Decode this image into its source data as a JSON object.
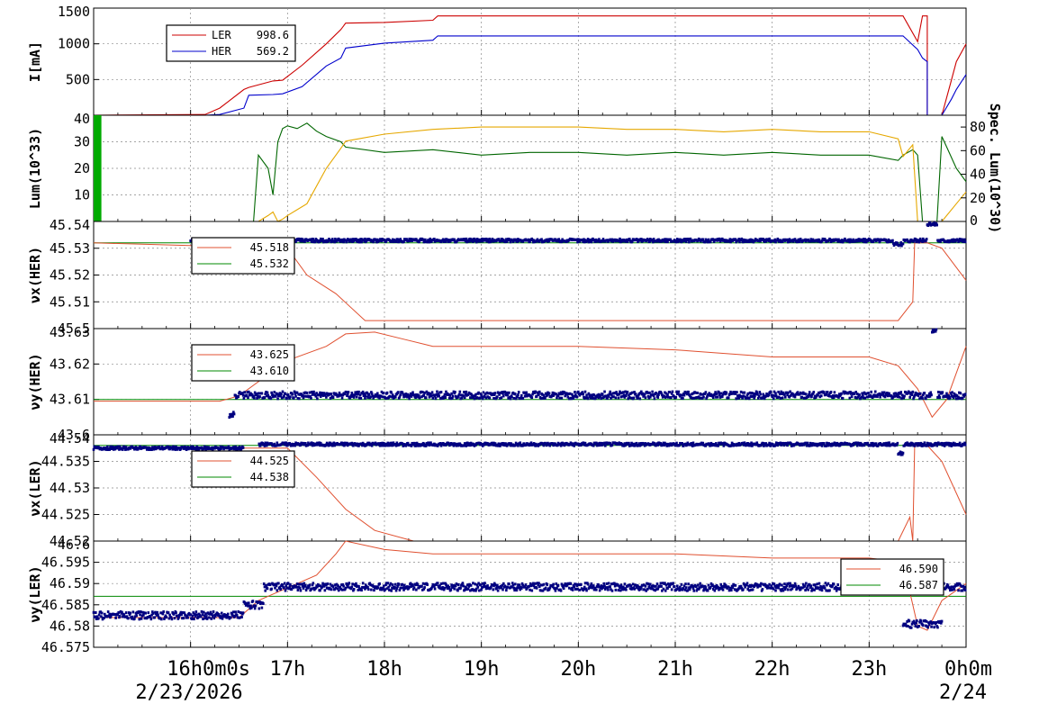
{
  "colors": {
    "ler": "#cc0000",
    "her": "#0000cc",
    "lum_green": "#006600",
    "spec_lum": "#e6a800",
    "measured": "#000080",
    "setpoint_red": "#e05030",
    "setpoint_green": "#008800",
    "lum_bar": "#00aa00"
  },
  "time_axis": {
    "tick_labels": [
      "16h0m0s",
      "17h",
      "18h",
      "19h",
      "20h",
      "21h",
      "22h",
      "23h",
      "0h0m"
    ],
    "date_left": "2/23/2026",
    "date_right": "2/24"
  },
  "chart_data": [
    {
      "id": "current",
      "type": "line",
      "ylabel": "I[mA]",
      "ylim": [
        0,
        1500
      ],
      "yticks": [
        "500",
        "1000",
        "1500"
      ],
      "grid": true,
      "legend": {
        "placement": "top-left",
        "entries": [
          {
            "name": "LER",
            "value": "998.6",
            "color_key": "ler"
          },
          {
            "name": "HER",
            "value": "569.2",
            "color_key": "her"
          }
        ]
      },
      "x_hours": [
        15.0,
        16.15,
        16.3,
        16.55,
        16.6,
        16.85,
        16.95,
        17.15,
        17.4,
        17.55,
        17.6,
        18.0,
        18.5,
        18.55,
        19.5,
        20.5,
        21.5,
        22.0,
        22.5,
        23.0,
        23.35,
        23.5,
        23.55,
        23.6,
        23.6,
        23.75,
        23.85,
        23.9,
        24.0
      ],
      "series": [
        {
          "color_key": "ler",
          "y": [
            0,
            10,
            100,
            360,
            390,
            480,
            490,
            700,
            1000,
            1200,
            1290,
            1300,
            1330,
            1390,
            1390,
            1390,
            1390,
            1390,
            1390,
            1390,
            1390,
            1030,
            1390,
            1390,
            0,
            0,
            500,
            750,
            998.6
          ]
        },
        {
          "color_key": "her",
          "y": [
            0,
            0,
            10,
            100,
            280,
            290,
            300,
            400,
            690,
            800,
            940,
            1010,
            1050,
            1110,
            1110,
            1110,
            1110,
            1110,
            1110,
            1110,
            1110,
            920,
            800,
            750,
            0,
            0,
            230,
            360,
            569.2
          ]
        }
      ]
    },
    {
      "id": "luminosity",
      "type": "line",
      "ylabel": "Lum(10^33)",
      "ylabel_right": "Spec. Lum(10^30)",
      "ylim": [
        0,
        40
      ],
      "yticks": [
        "10",
        "20",
        "30",
        "40"
      ],
      "ylim_right": [
        0,
        90
      ],
      "yticks_right": [
        "0",
        "20",
        "40",
        "60",
        "80"
      ],
      "grid": true,
      "x_hours": [
        16.65,
        16.7,
        16.8,
        16.85,
        16.9,
        16.95,
        17.0,
        17.1,
        17.2,
        17.3,
        17.4,
        17.55,
        17.6,
        18.0,
        18.5,
        19.0,
        19.5,
        20.0,
        20.5,
        21.0,
        21.5,
        22.0,
        22.5,
        23.0,
        23.3,
        23.35,
        23.45,
        23.5,
        23.55,
        23.6,
        23.7,
        23.75,
        23.8,
        23.9,
        24.0
      ],
      "series": [
        {
          "name": "Lum",
          "axis": "left",
          "color_key": "lum_green",
          "y": [
            0,
            25,
            20,
            10,
            30,
            35,
            36,
            35,
            37,
            34,
            32,
            30,
            28,
            26,
            27,
            25,
            26,
            26,
            25,
            26,
            25,
            26,
            25,
            25,
            23,
            25,
            27,
            25,
            0,
            0,
            0,
            32,
            28,
            20,
            15
          ]
        },
        {
          "name": "Spec. Lum",
          "axis": "right",
          "color_key": "spec_lum",
          "y": [
            0,
            0,
            5,
            8,
            0,
            2,
            5,
            10,
            15,
            30,
            45,
            62,
            68,
            74,
            78,
            80,
            80,
            80,
            78,
            78,
            76,
            78,
            76,
            76,
            70,
            55,
            65,
            0,
            0,
            0,
            0,
            0,
            5,
            15,
            25
          ]
        }
      ],
      "decorative_bar_hours": [
        15.0,
        15.08
      ]
    },
    {
      "id": "nux-her",
      "type": "scatter",
      "ylabel": "νx(HER)",
      "ylim": [
        45.5,
        45.54
      ],
      "yticks": [
        "45.5",
        "45.51",
        "45.52",
        "45.53",
        "45.54"
      ],
      "grid": true,
      "legend": {
        "placement": "top-left",
        "entries": [
          {
            "name": "",
            "value": "45.518",
            "color_key": "setpoint_red"
          },
          {
            "name": "",
            "value": "45.532",
            "color_key": "setpoint_green"
          }
        ]
      },
      "setpoint_red": {
        "x_hours": [
          15.0,
          17.0,
          17.2,
          17.5,
          17.8,
          18.3,
          19.0,
          21.0,
          22.0,
          23.0,
          23.3,
          23.45,
          23.47,
          23.6,
          23.75,
          24.0
        ],
        "y": [
          45.532,
          45.53,
          45.52,
          45.513,
          45.503,
          45.503,
          45.503,
          45.503,
          45.503,
          45.503,
          45.503,
          45.51,
          45.532,
          45.532,
          45.53,
          45.518
        ]
      },
      "setpoint_green": {
        "x_hours": [
          15.0,
          24.0
        ],
        "y": [
          45.532,
          45.532
        ]
      },
      "measured": {
        "start_hour": 16.0,
        "end_hour": 24.0,
        "base": 45.5329,
        "noise": 0.0006,
        "drops": [
          [
            23.25,
            23.35,
            45.5315
          ],
          [
            23.6,
            23.7,
            45.539
          ]
        ]
      }
    },
    {
      "id": "nuy-her",
      "type": "scatter",
      "ylabel": "νy(HER)",
      "ylim": [
        43.6,
        43.63
      ],
      "yticks": [
        "43.6",
        "43.61",
        "43.62",
        "43.63"
      ],
      "grid": true,
      "legend": {
        "placement": "top-left",
        "entries": [
          {
            "name": "",
            "value": "43.625",
            "color_key": "setpoint_red"
          },
          {
            "name": "",
            "value": "43.610",
            "color_key": "setpoint_green"
          }
        ]
      },
      "setpoint_red": {
        "x_hours": [
          15.0,
          16.3,
          16.5,
          17.0,
          17.4,
          17.6,
          17.9,
          18.2,
          18.5,
          19.0,
          20.0,
          21.0,
          22.0,
          23.0,
          23.3,
          23.5,
          23.65,
          23.8,
          24.0
        ],
        "y": [
          43.6095,
          43.6095,
          43.611,
          43.621,
          43.625,
          43.6285,
          43.629,
          43.627,
          43.625,
          43.625,
          43.625,
          43.624,
          43.622,
          43.622,
          43.6195,
          43.613,
          43.605,
          43.61,
          43.625
        ]
      },
      "setpoint_green": {
        "x_hours": [
          15.0,
          24.0
        ],
        "y": [
          43.61,
          43.61
        ]
      },
      "measured": {
        "start_hour": 16.4,
        "end_hour": 24.0,
        "base": 43.6112,
        "noise": 0.001,
        "drops": [
          [
            16.4,
            16.45,
            43.6055
          ],
          [
            23.65,
            23.7,
            43.6295
          ]
        ]
      }
    },
    {
      "id": "nux-ler",
      "type": "scatter",
      "ylabel": "νx(LER)",
      "ylim": [
        44.52,
        44.54
      ],
      "yticks": [
        "44.52",
        "44.525",
        "44.53",
        "44.535",
        "44.54"
      ],
      "grid": true,
      "legend": {
        "placement": "top-left",
        "entries": [
          {
            "name": "",
            "value": "44.525",
            "color_key": "setpoint_red"
          },
          {
            "name": "",
            "value": "44.538",
            "color_key": "setpoint_green"
          }
        ]
      },
      "setpoint_red": {
        "x_hours": [
          15.0,
          17.0,
          17.3,
          17.6,
          17.9,
          18.3,
          19.0,
          21.0,
          22.0,
          23.0,
          23.3,
          23.42,
          23.45,
          23.47,
          23.6,
          23.75,
          24.0
        ],
        "y": [
          44.5375,
          44.5375,
          44.532,
          44.526,
          44.522,
          44.5195,
          44.519,
          44.519,
          44.519,
          44.519,
          44.5195,
          44.5245,
          44.519,
          44.538,
          44.538,
          44.535,
          44.525
        ]
      },
      "setpoint_green": {
        "x_hours": [
          15.0,
          24.0
        ],
        "y": [
          44.538,
          44.538
        ]
      },
      "measured": {
        "start_hour": 15.0,
        "end_hour": 24.0,
        "base": 44.5382,
        "noise": 0.0003,
        "drops": [
          [
            15.0,
            16.55,
            44.5375
          ],
          [
            16.55,
            16.7,
            44.541
          ],
          [
            23.3,
            23.35,
            44.5365
          ]
        ]
      }
    },
    {
      "id": "nuy-ler",
      "type": "scatter",
      "ylabel": "νy(LER)",
      "ylim": [
        46.575,
        46.6
      ],
      "yticks": [
        "46.575",
        "46.58",
        "46.585",
        "46.59",
        "46.595",
        "46.6"
      ],
      "grid": true,
      "legend": {
        "placement": "top-right",
        "entries": [
          {
            "name": "",
            "value": "46.590",
            "color_key": "setpoint_red"
          },
          {
            "name": "",
            "value": "46.587",
            "color_key": "setpoint_green"
          }
        ]
      },
      "setpoint_red": {
        "x_hours": [
          15.0,
          16.5,
          16.7,
          17.0,
          17.3,
          17.5,
          17.6,
          18.0,
          18.5,
          19.0,
          20.0,
          21.0,
          22.0,
          23.0,
          23.35,
          23.5,
          23.6,
          23.75,
          24.0
        ],
        "y": [
          46.582,
          46.582,
          46.586,
          46.589,
          46.592,
          46.597,
          46.6,
          46.598,
          46.597,
          46.597,
          46.597,
          46.597,
          46.596,
          46.596,
          46.595,
          46.58,
          46.579,
          46.586,
          46.59
        ]
      },
      "setpoint_green": {
        "x_hours": [
          15.0,
          24.0
        ],
        "y": [
          46.587,
          46.587
        ]
      },
      "measured": {
        "start_hour": 15.0,
        "end_hour": 24.0,
        "base": 46.5892,
        "noise": 0.0009,
        "drops": [
          [
            15.0,
            16.55,
            46.5825
          ],
          [
            16.55,
            16.75,
            46.585
          ],
          [
            23.35,
            23.75,
            46.5805
          ]
        ]
      }
    }
  ]
}
